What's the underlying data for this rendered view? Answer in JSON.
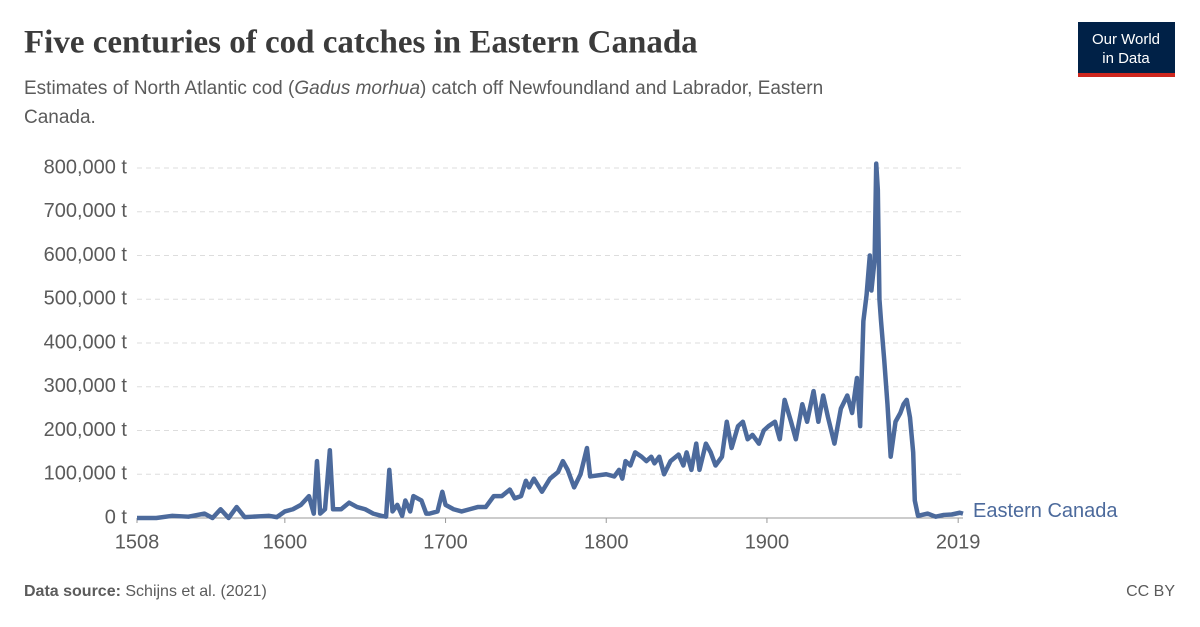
{
  "chart_data": {
    "type": "line",
    "title": "Five centuries of cod catches in Eastern Canada",
    "subtitle": [
      "Estimates of North Atlantic cod (",
      "Gadus morhua",
      ") catch off Newfoundland and Labrador, Eastern",
      "Canada."
    ],
    "source_label": "Data source:",
    "source": "Schijns et al. (2021)",
    "license": "CC BY",
    "logo": [
      "Our World",
      "in Data"
    ],
    "x": [
      1508,
      1520,
      1530,
      1540,
      1550,
      1555,
      1560,
      1565,
      1570,
      1575,
      1580,
      1590,
      1595,
      1600,
      1605,
      1610,
      1615,
      1618,
      1620,
      1622,
      1625,
      1628,
      1630,
      1635,
      1640,
      1645,
      1650,
      1655,
      1660,
      1663,
      1665,
      1667,
      1670,
      1673,
      1675,
      1678,
      1680,
      1685,
      1688,
      1690,
      1695,
      1698,
      1700,
      1705,
      1710,
      1715,
      1720,
      1725,
      1730,
      1735,
      1740,
      1743,
      1747,
      1750,
      1752,
      1755,
      1760,
      1765,
      1770,
      1773,
      1776,
      1780,
      1784,
      1788,
      1790,
      1800,
      1805,
      1808,
      1810,
      1812,
      1815,
      1818,
      1822,
      1825,
      1828,
      1830,
      1833,
      1836,
      1840,
      1845,
      1848,
      1850,
      1853,
      1856,
      1858,
      1862,
      1865,
      1868,
      1872,
      1875,
      1878,
      1882,
      1885,
      1888,
      1891,
      1895,
      1898,
      1901,
      1905,
      1908,
      1911,
      1915,
      1918,
      1922,
      1925,
      1929,
      1932,
      1935,
      1938,
      1942,
      1946,
      1950,
      1953,
      1956,
      1958,
      1960,
      1962,
      1964,
      1965,
      1967,
      1968,
      1969,
      1970,
      1971,
      1973,
      1975,
      1977,
      1980,
      1983,
      1985,
      1987,
      1989,
      1991,
      1992,
      1994,
      2000,
      2005,
      2010,
      2015,
      2020,
      2022
    ],
    "series": [
      {
        "name": "Eastern Canada",
        "color": "#4c6a9c",
        "values": [
          0,
          0,
          5000,
          3000,
          10000,
          0,
          20000,
          0,
          25000,
          2000,
          3000,
          5000,
          2000,
          15000,
          20000,
          30000,
          50000,
          10000,
          130000,
          10000,
          20000,
          155000,
          20000,
          20000,
          35000,
          25000,
          20000,
          10000,
          5000,
          3000,
          110000,
          15000,
          30000,
          5000,
          40000,
          15000,
          50000,
          40000,
          10000,
          10000,
          15000,
          60000,
          30000,
          20000,
          15000,
          20000,
          25000,
          25000,
          50000,
          50000,
          65000,
          45000,
          50000,
          85000,
          70000,
          90000,
          60000,
          90000,
          105000,
          130000,
          110000,
          70000,
          100000,
          160000,
          95000,
          100000,
          95000,
          110000,
          90000,
          130000,
          120000,
          150000,
          140000,
          130000,
          140000,
          125000,
          140000,
          100000,
          130000,
          145000,
          120000,
          150000,
          110000,
          170000,
          110000,
          170000,
          150000,
          120000,
          140000,
          220000,
          160000,
          210000,
          220000,
          180000,
          190000,
          170000,
          200000,
          210000,
          220000,
          180000,
          270000,
          220000,
          180000,
          260000,
          220000,
          290000,
          220000,
          280000,
          230000,
          170000,
          250000,
          280000,
          240000,
          320000,
          210000,
          450000,
          510000,
          600000,
          520000,
          590000,
          810000,
          750000,
          500000,
          450000,
          360000,
          260000,
          140000,
          220000,
          240000,
          260000,
          270000,
          230000,
          150000,
          40000,
          5000,
          10000,
          3000,
          7000,
          8000,
          12000,
          10000
        ]
      }
    ],
    "xlim": [
      1508,
      2022
    ],
    "xticks": [
      1508,
      1600,
      1700,
      1800,
      1900,
      2019
    ],
    "ylim": [
      0,
      800000
    ],
    "yticks": [
      {
        "value": 0,
        "label": "0 t"
      },
      {
        "value": 100000,
        "label": "100,000 t"
      },
      {
        "value": 200000,
        "label": "200,000 t"
      },
      {
        "value": 300000,
        "label": "300,000 t"
      },
      {
        "value": 400000,
        "label": "400,000 t"
      },
      {
        "value": 500000,
        "label": "500,000 t"
      },
      {
        "value": 600000,
        "label": "600,000 t"
      },
      {
        "value": 700000,
        "label": "700,000 t"
      },
      {
        "value": 800000,
        "label": "800,000 t"
      }
    ],
    "grid": true
  }
}
